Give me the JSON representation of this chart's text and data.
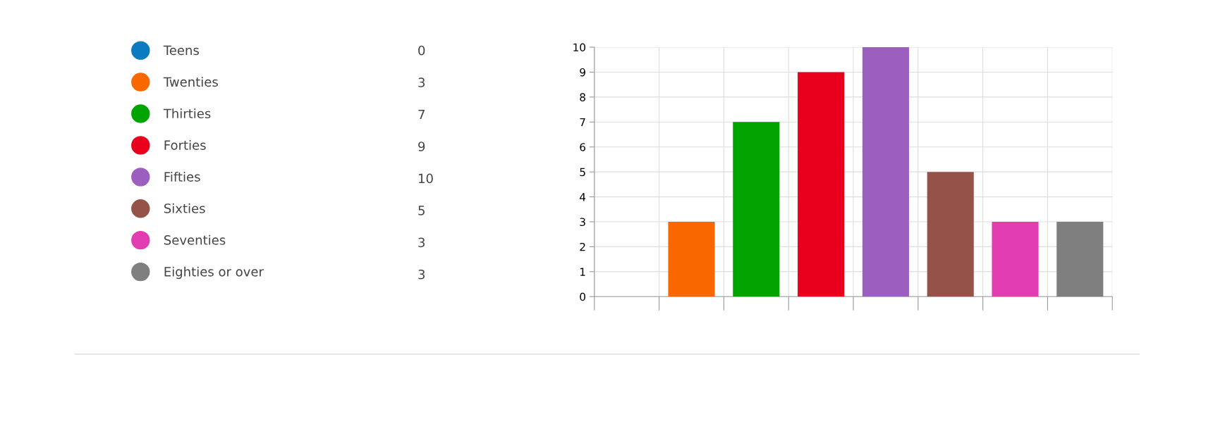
{
  "chart_data": {
    "type": "bar",
    "categories": [
      null,
      null,
      null,
      null,
      null,
      null,
      null,
      null
    ],
    "series": [
      {
        "name": "Teens",
        "color": "#0a7bc1",
        "values": [
          0,
          null,
          null,
          null,
          null,
          null,
          null,
          null
        ]
      },
      {
        "name": "Twenties",
        "color": "#f96800",
        "values": [
          null,
          3,
          null,
          null,
          null,
          null,
          null,
          null
        ]
      },
      {
        "name": "Thirties",
        "color": "#00a300",
        "values": [
          null,
          null,
          7,
          null,
          null,
          null,
          null,
          null
        ]
      },
      {
        "name": "Forties",
        "color": "#e8001c",
        "values": [
          null,
          null,
          null,
          9,
          null,
          null,
          null,
          null
        ]
      },
      {
        "name": "Fifties",
        "color": "#9b5fc0",
        "values": [
          null,
          null,
          null,
          null,
          10,
          null,
          null,
          null
        ]
      },
      {
        "name": "Sixties",
        "color": "#955248",
        "values": [
          null,
          null,
          null,
          null,
          null,
          5,
          null,
          null
        ]
      },
      {
        "name": "Seventies",
        "color": "#e23cb3",
        "values": [
          null,
          null,
          null,
          null,
          null,
          null,
          3,
          null
        ]
      },
      {
        "name": "Eighties or over",
        "color": "#7f7f7f",
        "values": [
          null,
          null,
          null,
          null,
          null,
          null,
          null,
          3
        ]
      }
    ],
    "stacked": true,
    "annotations": [
      "0",
      "3",
      "7",
      "9",
      "10",
      "5",
      "3",
      "3"
    ],
    "ylim": [
      0,
      10
    ],
    "yticks": [
      0,
      1,
      2,
      3,
      4,
      5,
      6,
      7,
      8,
      9,
      10
    ],
    "grid": true,
    "legend": "left",
    "tick_labels": "y"
  }
}
